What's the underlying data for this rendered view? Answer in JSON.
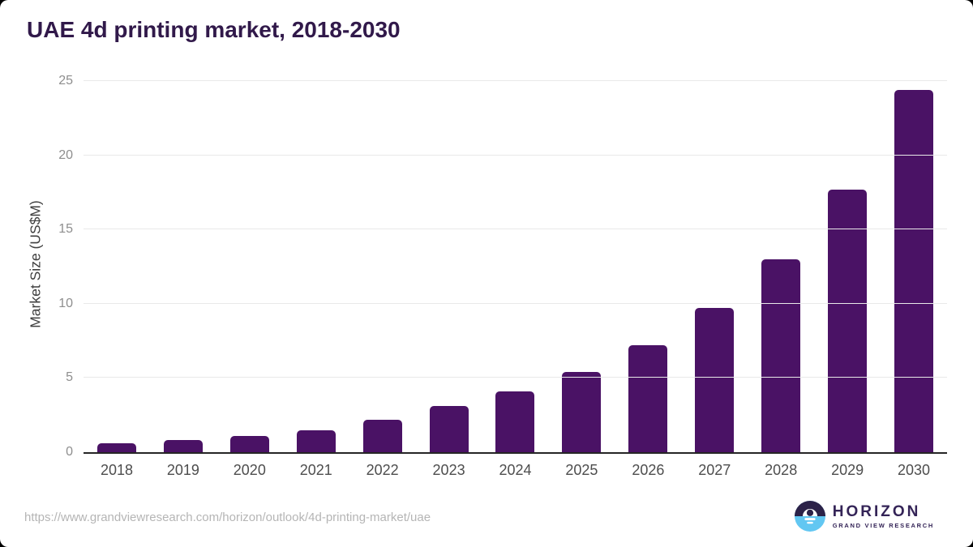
{
  "page": {
    "background_color": "#000000",
    "card_color": "#ffffff"
  },
  "chart_data": {
    "type": "bar",
    "title": "UAE 4d printing market, 2018-2030",
    "categories": [
      "2018",
      "2019",
      "2020",
      "2021",
      "2022",
      "2023",
      "2024",
      "2025",
      "2026",
      "2027",
      "2028",
      "2029",
      "2030"
    ],
    "values": [
      0.6,
      0.8,
      1.1,
      1.5,
      2.2,
      3.1,
      4.1,
      5.4,
      7.2,
      9.7,
      13.0,
      17.7,
      24.4
    ],
    "xlabel": "",
    "ylabel": "Market Size (US$M)",
    "ylim": [
      0,
      25
    ],
    "yticks": [
      0,
      5,
      10,
      15,
      20,
      25
    ],
    "grid": "horizontal",
    "legend": "none",
    "bar_color": "#4a1265",
    "gridline_color": "#e9e9e9",
    "axis_line_color": "#262626",
    "title_color": "#31194a"
  },
  "footer": {
    "source_url": "https://www.grandviewresearch.com/horizon/outlook/4d-printing-market/uae",
    "logo": {
      "brand": "HORIZON",
      "sub_brand": "GRAND VIEW RESEARCH",
      "mark_top_color": "#2c2248",
      "mark_bottom_color": "#62c7f2",
      "text_color": "#342457"
    }
  }
}
